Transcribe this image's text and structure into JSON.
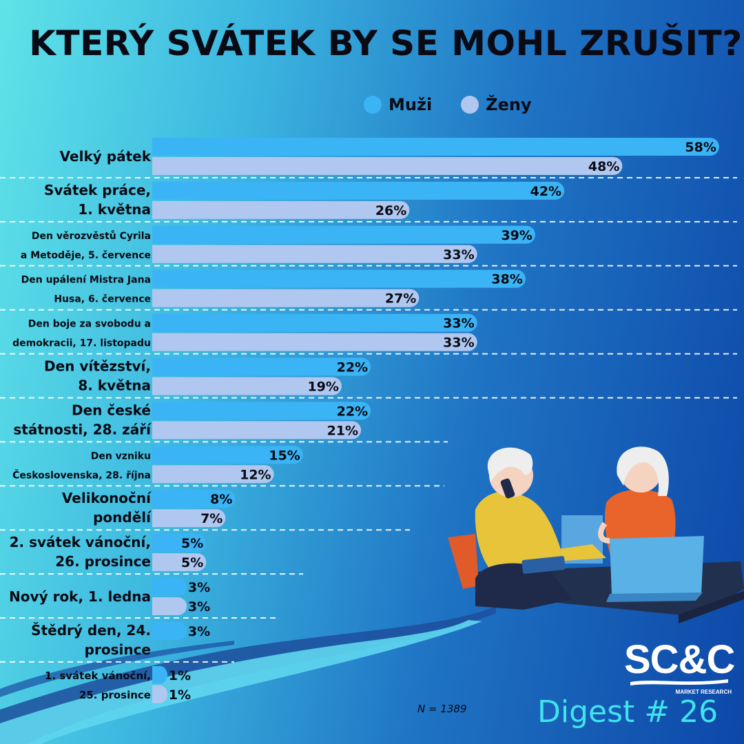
{
  "title": "KTERÝ SVÁTEK BY SE MOHL ZRUŠIT?",
  "legend": [
    {
      "label": "Muži",
      "color": "#3bb4f5"
    },
    {
      "label": "Ženy",
      "color": "#b0c8ef"
    }
  ],
  "chart_data": {
    "type": "bar",
    "orientation": "horizontal",
    "title": "KTERÝ SVÁTEK BY SE MOHL ZRUŠIT?",
    "categories": [
      [
        "Velký pátek"
      ],
      [
        "Svátek práce,",
        "1. května"
      ],
      [
        "Den věrozvěstů Cyrila",
        "a Metoděje, 5. července"
      ],
      [
        "Den upálení Mistra Jana",
        "Husa, 6. července"
      ],
      [
        "Den boje za svobodu a",
        "demokracii, 17. listopadu"
      ],
      [
        "Den vítězství,",
        "8. května"
      ],
      [
        "Den české",
        "státnosti, 28. září"
      ],
      [
        "Den vzniku",
        "Československa, 28. října"
      ],
      [
        "Velikonoční",
        "pondělí"
      ],
      [
        "2. svátek vánoční,",
        "26. prosince"
      ],
      [
        "Nový rok, 1. ledna"
      ],
      [
        "Štědrý den, 24.",
        "prosince"
      ],
      [
        "1. svátek vánoční,",
        "25. prosince"
      ]
    ],
    "series": [
      {
        "name": "Muži",
        "color": "#3bb4f5",
        "values": [
          58,
          42,
          39,
          38,
          33,
          22,
          22,
          15,
          8,
          5,
          3,
          3,
          1
        ]
      },
      {
        "name": "Ženy",
        "color": "#b0c8ef",
        "values": [
          48,
          26,
          33,
          27,
          33,
          19,
          21,
          12,
          7,
          5,
          3,
          null,
          1
        ]
      }
    ],
    "value_suffix": "%",
    "xlim": [
      0,
      60
    ],
    "grid": false,
    "legend_position": "top-right"
  },
  "footer": {
    "sample": "N  = 1389",
    "brand": "SC&C",
    "brand_sub": "MARKET RESEARCH",
    "digest": "Digest # 26"
  }
}
